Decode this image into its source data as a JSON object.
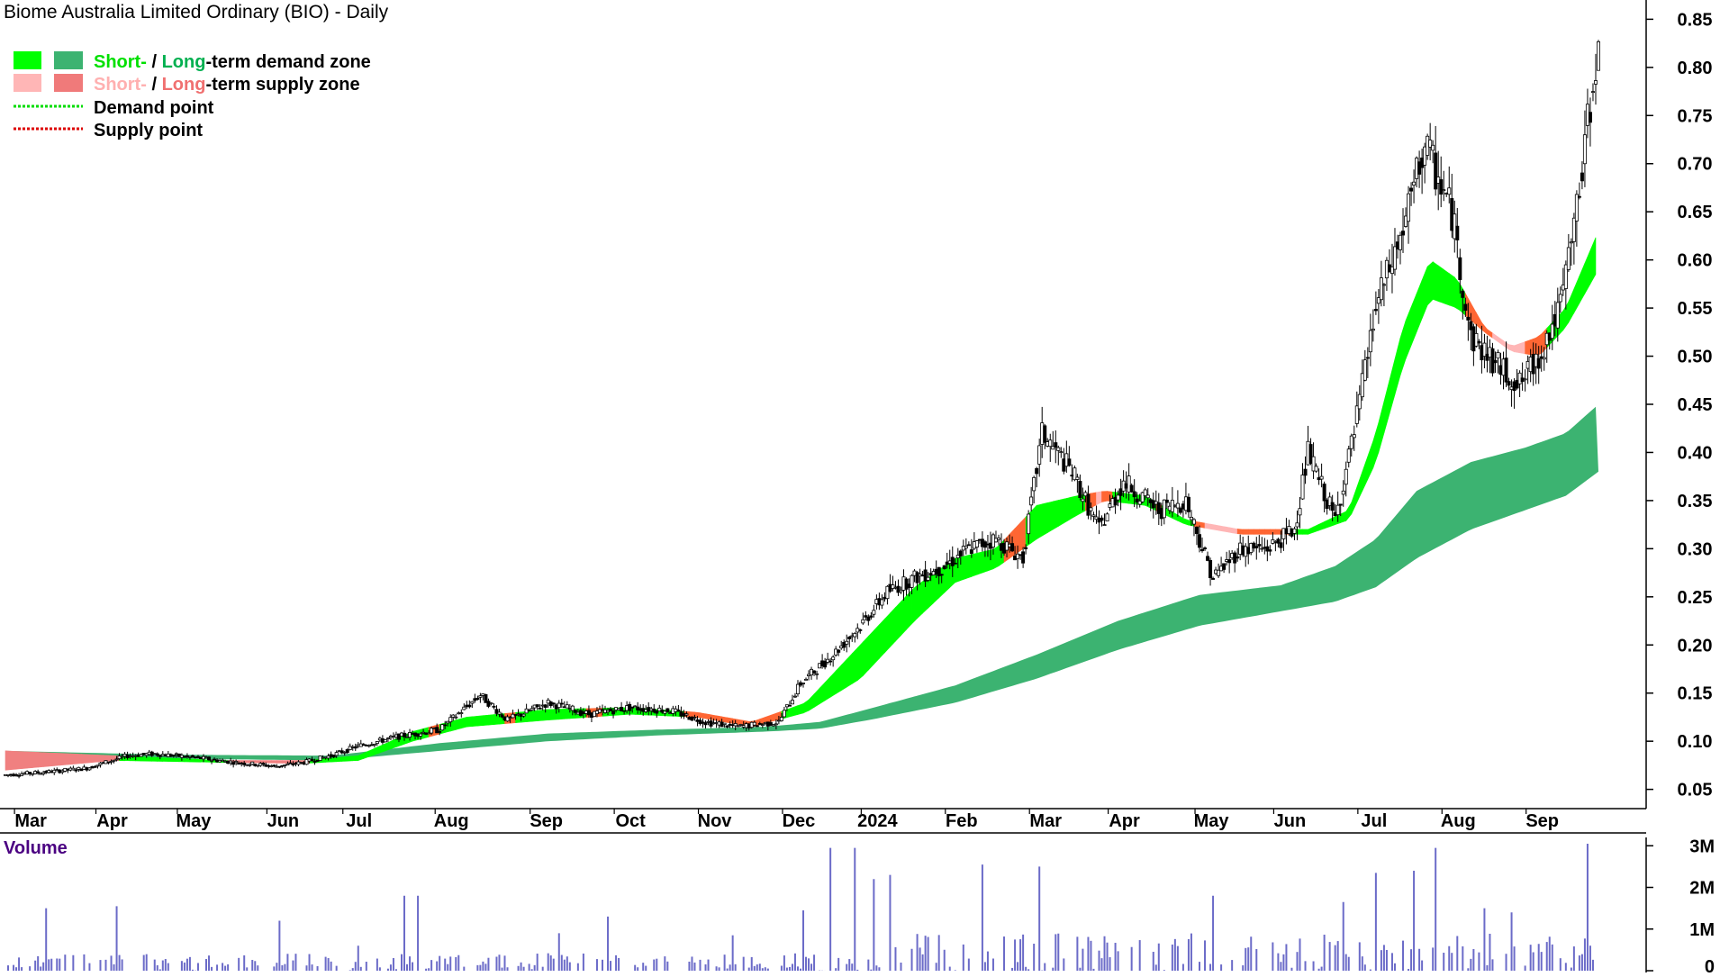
{
  "chart_data": {
    "type": "candlestick",
    "title": "Biome Australia Limited Ordinary (BIO) - Daily",
    "legend": {
      "placement": "top-left",
      "items": [
        {
          "parts": [
            {
              "text": "Short-",
              "color": "#00e000"
            },
            {
              "text": " / ",
              "color": "#000000"
            },
            {
              "text": "Long",
              "color": "#00b050"
            },
            {
              "text": "-term demand zone",
              "color": "#000000"
            }
          ],
          "swatches": [
            "#00ff00",
            "#3cb371"
          ]
        },
        {
          "parts": [
            {
              "text": "Short-",
              "color": "#ffb0b0"
            },
            {
              "text": " / ",
              "color": "#000000"
            },
            {
              "text": "Long",
              "color": "#f07070"
            },
            {
              "text": "-term supply zone",
              "color": "#000000"
            }
          ],
          "swatches": [
            "#ffb6b6",
            "#f07a7a"
          ]
        },
        {
          "parts": [
            {
              "text": "Demand point",
              "color": "#000000"
            }
          ],
          "line_color": "#00dd00"
        },
        {
          "parts": [
            {
              "text": "Supply point",
              "color": "#000000"
            }
          ],
          "line_color": "#dd0000"
        }
      ]
    },
    "price_axis": {
      "ylim": [
        0.03,
        0.87
      ],
      "ticks": [
        "0.85",
        "0.80",
        "0.75",
        "0.70",
        "0.65",
        "0.60",
        "0.55",
        "0.50",
        "0.45",
        "0.40",
        "0.35",
        "0.30",
        "0.25",
        "0.20",
        "0.15",
        "0.10",
        "0.05"
      ],
      "side": "right"
    },
    "x_axis": {
      "labels": [
        "Mar",
        "Apr",
        "May",
        "Jun",
        "Jul",
        "Aug",
        "Sep",
        "Oct",
        "Nov",
        "Dec",
        "2024",
        "Feb",
        "Mar",
        "Apr",
        "May",
        "Jun",
        "Jul",
        "Aug",
        "Sep"
      ],
      "label_days": [
        8,
        38,
        68,
        101,
        129,
        163,
        198,
        229,
        260,
        291,
        320,
        351,
        382,
        411,
        443,
        472,
        503,
        534,
        565
      ]
    },
    "volume": {
      "label": "Volume",
      "ticks": [
        "3M",
        "2M",
        "1M",
        "0"
      ],
      "ylim": [
        0,
        3200000
      ]
    },
    "price_anchors": [
      [
        0,
        0.065
      ],
      [
        15,
        0.068
      ],
      [
        30,
        0.072
      ],
      [
        45,
        0.085
      ],
      [
        55,
        0.087
      ],
      [
        70,
        0.083
      ],
      [
        85,
        0.078
      ],
      [
        100,
        0.074
      ],
      [
        110,
        0.078
      ],
      [
        120,
        0.085
      ],
      [
        130,
        0.095
      ],
      [
        145,
        0.105
      ],
      [
        160,
        0.112
      ],
      [
        175,
        0.148
      ],
      [
        185,
        0.122
      ],
      [
        200,
        0.14
      ],
      [
        215,
        0.128
      ],
      [
        230,
        0.135
      ],
      [
        245,
        0.132
      ],
      [
        258,
        0.12
      ],
      [
        270,
        0.115
      ],
      [
        285,
        0.12
      ],
      [
        293,
        0.16
      ],
      [
        305,
        0.19
      ],
      [
        315,
        0.22
      ],
      [
        325,
        0.255
      ],
      [
        335,
        0.27
      ],
      [
        345,
        0.28
      ],
      [
        355,
        0.3
      ],
      [
        365,
        0.31
      ],
      [
        375,
        0.29
      ],
      [
        382,
        0.42
      ],
      [
        393,
        0.38
      ],
      [
        403,
        0.32
      ],
      [
        412,
        0.37
      ],
      [
        425,
        0.34
      ],
      [
        435,
        0.35
      ],
      [
        445,
        0.27
      ],
      [
        455,
        0.3
      ],
      [
        465,
        0.3
      ],
      [
        475,
        0.32
      ],
      [
        480,
        0.4
      ],
      [
        490,
        0.33
      ],
      [
        497,
        0.42
      ],
      [
        505,
        0.55
      ],
      [
        515,
        0.63
      ],
      [
        523,
        0.72
      ],
      [
        533,
        0.65
      ],
      [
        540,
        0.52
      ],
      [
        550,
        0.49
      ],
      [
        558,
        0.47
      ],
      [
        565,
        0.5
      ],
      [
        573,
        0.55
      ],
      [
        580,
        0.67
      ],
      [
        583,
        0.74
      ],
      [
        586,
        0.81
      ]
    ],
    "short_term_zone_upper": [
      [
        0,
        0.09
      ],
      [
        40,
        0.085
      ],
      [
        80,
        0.08
      ],
      [
        110,
        0.08
      ],
      [
        130,
        0.085
      ],
      [
        150,
        0.11
      ],
      [
        170,
        0.125
      ],
      [
        200,
        0.133
      ],
      [
        230,
        0.135
      ],
      [
        255,
        0.13
      ],
      [
        275,
        0.12
      ],
      [
        295,
        0.14
      ],
      [
        315,
        0.2
      ],
      [
        335,
        0.26
      ],
      [
        350,
        0.29
      ],
      [
        365,
        0.3
      ],
      [
        380,
        0.345
      ],
      [
        395,
        0.355
      ],
      [
        405,
        0.36
      ],
      [
        420,
        0.355
      ],
      [
        435,
        0.33
      ],
      [
        455,
        0.32
      ],
      [
        470,
        0.32
      ],
      [
        480,
        0.32
      ],
      [
        495,
        0.34
      ],
      [
        505,
        0.42
      ],
      [
        515,
        0.53
      ],
      [
        525,
        0.6
      ],
      [
        535,
        0.58
      ],
      [
        545,
        0.53
      ],
      [
        555,
        0.51
      ],
      [
        565,
        0.52
      ],
      [
        575,
        0.55
      ],
      [
        587,
        0.63
      ]
    ],
    "short_term_zone_lower": [
      [
        0,
        0.07
      ],
      [
        40,
        0.08
      ],
      [
        80,
        0.078
      ],
      [
        110,
        0.077
      ],
      [
        130,
        0.08
      ],
      [
        150,
        0.1
      ],
      [
        170,
        0.115
      ],
      [
        200,
        0.122
      ],
      [
        230,
        0.128
      ],
      [
        255,
        0.125
      ],
      [
        275,
        0.115
      ],
      [
        295,
        0.13
      ],
      [
        315,
        0.165
      ],
      [
        335,
        0.225
      ],
      [
        350,
        0.265
      ],
      [
        365,
        0.28
      ],
      [
        380,
        0.31
      ],
      [
        395,
        0.335
      ],
      [
        405,
        0.35
      ],
      [
        420,
        0.345
      ],
      [
        435,
        0.325
      ],
      [
        455,
        0.315
      ],
      [
        470,
        0.315
      ],
      [
        480,
        0.315
      ],
      [
        495,
        0.33
      ],
      [
        505,
        0.39
      ],
      [
        515,
        0.49
      ],
      [
        525,
        0.56
      ],
      [
        535,
        0.55
      ],
      [
        545,
        0.525
      ],
      [
        555,
        0.505
      ],
      [
        565,
        0.5
      ],
      [
        575,
        0.53
      ],
      [
        587,
        0.59
      ]
    ],
    "long_term_zone_upper": [
      [
        0,
        0.09
      ],
      [
        60,
        0.086
      ],
      [
        120,
        0.085
      ],
      [
        160,
        0.098
      ],
      [
        200,
        0.108
      ],
      [
        240,
        0.112
      ],
      [
        280,
        0.115
      ],
      [
        300,
        0.12
      ],
      [
        320,
        0.135
      ],
      [
        350,
        0.158
      ],
      [
        380,
        0.19
      ],
      [
        410,
        0.225
      ],
      [
        440,
        0.252
      ],
      [
        470,
        0.262
      ],
      [
        490,
        0.282
      ],
      [
        505,
        0.31
      ],
      [
        520,
        0.36
      ],
      [
        540,
        0.39
      ],
      [
        560,
        0.405
      ],
      [
        575,
        0.42
      ],
      [
        587,
        0.45
      ]
    ],
    "long_term_zone_lower": [
      [
        0,
        0.085
      ],
      [
        60,
        0.082
      ],
      [
        120,
        0.08
      ],
      [
        160,
        0.09
      ],
      [
        200,
        0.1
      ],
      [
        240,
        0.106
      ],
      [
        280,
        0.11
      ],
      [
        300,
        0.113
      ],
      [
        320,
        0.123
      ],
      [
        350,
        0.14
      ],
      [
        380,
        0.165
      ],
      [
        410,
        0.195
      ],
      [
        440,
        0.22
      ],
      [
        470,
        0.235
      ],
      [
        490,
        0.245
      ],
      [
        505,
        0.26
      ],
      [
        520,
        0.29
      ],
      [
        540,
        0.32
      ],
      [
        560,
        0.34
      ],
      [
        575,
        0.355
      ],
      [
        587,
        0.38
      ]
    ],
    "volume_spikes": [
      [
        15,
        1500000
      ],
      [
        41,
        1550000
      ],
      [
        101,
        1200000
      ],
      [
        130,
        600000
      ],
      [
        147,
        1800000
      ],
      [
        152,
        1800000
      ],
      [
        204,
        900000
      ],
      [
        222,
        1300000
      ],
      [
        268,
        850000
      ],
      [
        294,
        1450000
      ],
      [
        304,
        2950000
      ],
      [
        313,
        2950000
      ],
      [
        320,
        2200000
      ],
      [
        326,
        2300000
      ],
      [
        360,
        2550000
      ],
      [
        381,
        2500000
      ],
      [
        445,
        1800000
      ],
      [
        493,
        1650000
      ],
      [
        505,
        2350000
      ],
      [
        519,
        2400000
      ],
      [
        527,
        2950000
      ],
      [
        545,
        1500000
      ],
      [
        555,
        1400000
      ],
      [
        583,
        3050000
      ]
    ]
  }
}
